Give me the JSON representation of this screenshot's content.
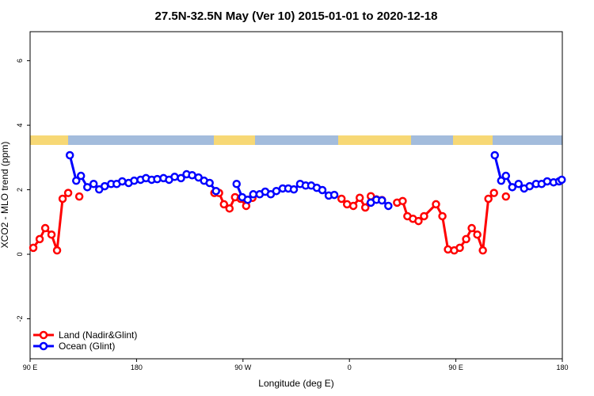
{
  "chart_data": {
    "type": "line",
    "title": "27.5N-32.5N May (Ver 10)   2015-01-01 to 2020-12-18",
    "x_label": "Longitude (deg E)",
    "y_label": "XCO2 - MLO trend (ppm)",
    "xlim": [
      90,
      540
    ],
    "xticks": [
      {
        "value": 90,
        "label": "90 E"
      },
      180,
      {
        "value": 270,
        "label": "90 W"
      },
      {
        "value": 360,
        "label": "0"
      },
      {
        "value": 450,
        "label": "90 E"
      },
      {
        "value": 540,
        "label": "180"
      }
    ],
    "ylim": [
      -3.24,
      6.9
    ],
    "yticks": [
      -2,
      0,
      2,
      4,
      6
    ],
    "legend": "bottom-left",
    "series": [
      {
        "name": "Land (Nadir&Glint)",
        "color": "#ff0000",
        "x": [
          92.7,
          98.1,
          102.8,
          108.1,
          112.8,
          117.5,
          122.2,
          null,
          131.6,
          null,
          245.8,
          249.8,
          253.9,
          258.6,
          263.3,
          268,
          272.7,
          278,
          null,
          353.3,
          358,
          363.3,
          368.7,
          373.4,
          378.1,
          382.8,
          387.5,
          null,
          400.3,
          405,
          409,
          413.7,
          418.4,
          423.1,
          433.2,
          438.6,
          443.3,
          448.6,
          453.3,
          458.7,
          463.4,
          468.1,
          472.8,
          477.5,
          482.2,
          null,
          492.3
        ],
        "values": [
          0.2,
          0.47,
          0.81,
          0.61,
          0.12,
          1.72,
          1.9,
          null,
          1.79,
          null,
          1.9,
          1.9,
          1.55,
          1.42,
          1.77,
          1.72,
          1.5,
          1.75,
          null,
          1.72,
          1.55,
          1.5,
          1.75,
          1.45,
          1.8,
          1.7,
          1.68,
          null,
          1.6,
          1.65,
          1.18,
          1.1,
          1.03,
          1.18,
          1.55,
          1.18,
          0.15,
          0.12,
          0.2,
          0.47,
          0.81,
          0.61,
          0.12,
          1.72,
          1.9,
          null,
          1.79
        ]
      },
      {
        "name": "Ocean (Glint)",
        "color": "#0000ff",
        "x": [
          123.6,
          129,
          133,
          138.4,
          143.7,
          148.4,
          153.1,
          158.5,
          163.2,
          167.9,
          173.3,
          178,
          183.4,
          188,
          192.8,
          197.5,
          202.8,
          207.5,
          212.2,
          217.6,
          222.3,
          227,
          232.4,
          237.1,
          241.8,
          247.2,
          null,
          264.6,
          269.3,
          274,
          278.7,
          284.1,
          288.8,
          293.5,
          298.2,
          303.6,
          308.3,
          313,
          318.3,
          323,
          327.7,
          332.4,
          337.1,
          342.5,
          347.2,
          null,
          378.1,
          382.8,
          387.5,
          392.9,
          null,
          482.9,
          488.3,
          492.3,
          497.7,
          503,
          507.7,
          512.4,
          517.8,
          522.5,
          527.2,
          532.6,
          537.3,
          539.5
        ],
        "values": [
          3.07,
          2.28,
          2.43,
          2.08,
          2.18,
          2.01,
          2.11,
          2.18,
          2.18,
          2.26,
          2.21,
          2.28,
          2.31,
          2.36,
          2.31,
          2.33,
          2.36,
          2.31,
          2.4,
          2.36,
          2.48,
          2.45,
          2.38,
          2.28,
          2.21,
          1.96,
          null,
          2.18,
          1.77,
          1.69,
          1.86,
          1.86,
          1.94,
          1.86,
          1.96,
          2.04,
          2.04,
          2.01,
          2.18,
          2.13,
          2.13,
          2.06,
          1.99,
          1.82,
          1.84,
          null,
          1.6,
          1.69,
          1.67,
          1.5,
          null,
          3.07,
          2.28,
          2.43,
          2.08,
          2.18,
          2.04,
          2.11,
          2.18,
          2.18,
          2.26,
          2.23,
          2.26,
          2.31
        ]
      }
    ]
  }
}
